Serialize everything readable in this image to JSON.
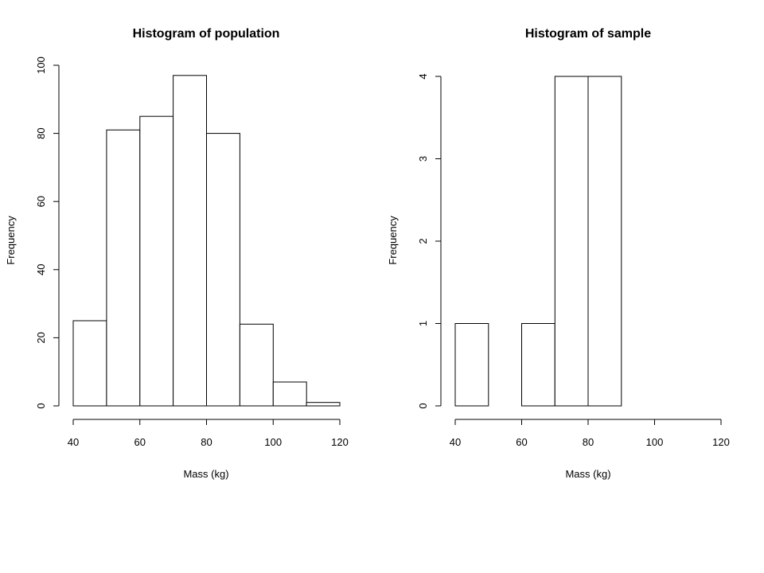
{
  "chart_data": [
    {
      "type": "bar",
      "title": "Histogram of population",
      "xlabel": "Mass (kg)",
      "ylabel": "Frequency",
      "bins": [
        [
          40,
          50
        ],
        [
          50,
          60
        ],
        [
          60,
          70
        ],
        [
          70,
          80
        ],
        [
          80,
          90
        ],
        [
          90,
          100
        ],
        [
          100,
          110
        ],
        [
          110,
          120
        ]
      ],
      "values": [
        25,
        81,
        85,
        97,
        80,
        24,
        7,
        1
      ],
      "xlim": [
        40,
        120
      ],
      "ylim": [
        0,
        100
      ],
      "x_ticks": [
        40,
        60,
        80,
        100,
        120
      ],
      "y_ticks": [
        0,
        20,
        40,
        60,
        80,
        100
      ],
      "grid": false
    },
    {
      "type": "bar",
      "title": "Histogram of sample",
      "xlabel": "Mass (kg)",
      "ylabel": "Frequency",
      "bins": [
        [
          40,
          50
        ],
        [
          50,
          60
        ],
        [
          60,
          70
        ],
        [
          70,
          80
        ],
        [
          80,
          90
        ]
      ],
      "values": [
        1,
        0,
        1,
        4,
        4
      ],
      "xlim": [
        40,
        120
      ],
      "ylim": [
        0,
        4
      ],
      "x_ticks": [
        40,
        60,
        80,
        100,
        120
      ],
      "y_ticks": [
        0,
        1,
        2,
        3,
        4
      ],
      "grid": false
    }
  ]
}
